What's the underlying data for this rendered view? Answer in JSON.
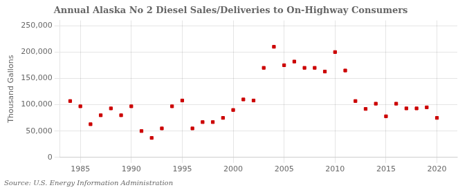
{
  "chart_data": {
    "type": "scatter",
    "title": "Annual Alaska No 2 Diesel Sales/Deliveries to On-Highway Consumers",
    "ylabel": "Thousand Gallons",
    "annotation": "Source: U.S. Energy Information Administration",
    "x": [
      1984,
      1985,
      1986,
      1987,
      1988,
      1989,
      1990,
      1991,
      1992,
      1993,
      1994,
      1995,
      1996,
      1997,
      1998,
      1999,
      2000,
      2001,
      2002,
      2003,
      2004,
      2005,
      2006,
      2007,
      2008,
      2009,
      2010,
      2011,
      2012,
      2013,
      2014,
      2015,
      2016,
      2017,
      2018,
      2019,
      2020
    ],
    "values": [
      107000,
      97000,
      63000,
      80000,
      93000,
      80000,
      97000,
      50000,
      37000,
      55000,
      97000,
      108000,
      55000,
      67000,
      67000,
      75000,
      90000,
      110000,
      108000,
      170000,
      210000,
      175000,
      182000,
      170000,
      170000,
      163000,
      200000,
      165000,
      107000,
      92000,
      102000,
      78000,
      102000,
      93000,
      93000,
      95000,
      75000
    ],
    "color": "#cc0000",
    "marker": "square",
    "xlim": [
      1983,
      2022
    ],
    "xticks": [
      1985,
      1990,
      1995,
      2000,
      2005,
      2010,
      2015,
      2020
    ],
    "ylim": [
      0,
      260000
    ],
    "yticks": [
      0,
      {
        "value": 50000,
        "label": "50,000"
      },
      {
        "value": 100000,
        "label": "100,000"
      },
      {
        "value": 150000,
        "label": "150,000"
      },
      {
        "value": 200000,
        "label": "200,000"
      },
      {
        "value": 250000,
        "label": "250,000"
      }
    ],
    "grid": true
  }
}
